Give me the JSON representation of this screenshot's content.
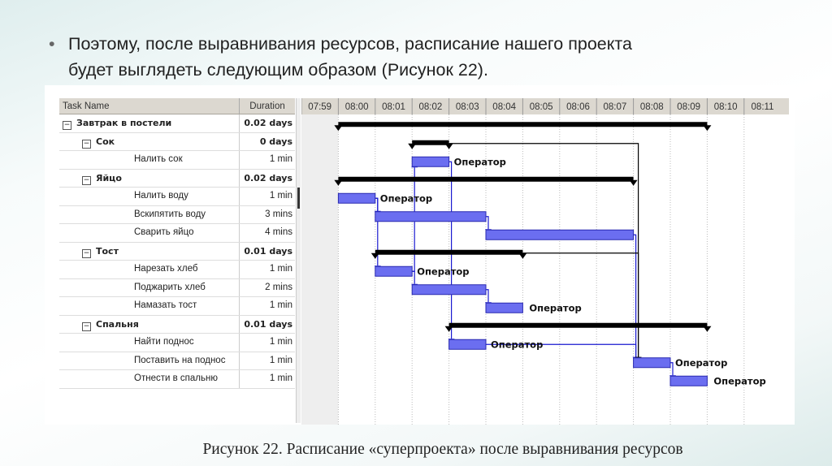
{
  "slide": {
    "bullet_line1": "Поэтому, после выравнивания ресурсов, расписание нашего проекта",
    "bullet_line2": "будет выглядеть следующим образом (Рисунок 22).",
    "caption": "Рисунок 22. Расписание «суперпроекта» после выравнивания ресурсов"
  },
  "table": {
    "col_task": "Task Name",
    "col_duration": "Duration",
    "rows": [
      {
        "name": "Завтрак в постели",
        "duration": "0.02 days",
        "level": 0,
        "summary": true
      },
      {
        "name": "Сок",
        "duration": "0 days",
        "level": 1,
        "summary": true
      },
      {
        "name": "Налить сок",
        "duration": "1 min",
        "level": 2,
        "summary": false
      },
      {
        "name": "Яйцо",
        "duration": "0.02 days",
        "level": 1,
        "summary": true
      },
      {
        "name": "Налить воду",
        "duration": "1 min",
        "level": 2,
        "summary": false
      },
      {
        "name": "Вскипятить воду",
        "duration": "3 mins",
        "level": 2,
        "summary": false
      },
      {
        "name": "Сварить яйцо",
        "duration": "4 mins",
        "level": 2,
        "summary": false
      },
      {
        "name": "Тост",
        "duration": "0.01 days",
        "level": 1,
        "summary": true
      },
      {
        "name": "Нарезать хлеб",
        "duration": "1 min",
        "level": 2,
        "summary": false
      },
      {
        "name": "Поджарить хлеб",
        "duration": "2 mins",
        "level": 2,
        "summary": false
      },
      {
        "name": "Намазать тост",
        "duration": "1 min",
        "level": 2,
        "summary": false
      },
      {
        "name": "Спальня",
        "duration": "0.01 days",
        "level": 1,
        "summary": true
      },
      {
        "name": "Найти поднос",
        "duration": "1 min",
        "level": 2,
        "summary": false
      },
      {
        "name": "Поставить на поднос",
        "duration": "1 min",
        "level": 2,
        "summary": false
      },
      {
        "name": "Отнести в спальню",
        "duration": "1 min",
        "level": 2,
        "summary": false
      }
    ],
    "collapse_symbol": "−"
  },
  "chart_data": {
    "type": "gantt",
    "time_ticks": [
      "07:59",
      "08:00",
      "08:01",
      "08:02",
      "08:03",
      "08:04",
      "08:05",
      "08:06",
      "08:07",
      "08:08",
      "08:09",
      "08:10",
      "08:11"
    ],
    "tasks": [
      {
        "row": 0,
        "start": "08:00",
        "end": "08:10",
        "summary": true
      },
      {
        "row": 1,
        "start": "08:02",
        "end": "08:03",
        "summary": true
      },
      {
        "row": 2,
        "start": "08:02",
        "end": "08:03",
        "summary": false,
        "resource": "Оператор"
      },
      {
        "row": 3,
        "start": "08:00",
        "end": "08:08",
        "summary": true
      },
      {
        "row": 4,
        "start": "08:00",
        "end": "08:01",
        "summary": false,
        "resource": "Оператор"
      },
      {
        "row": 5,
        "start": "08:01",
        "end": "08:04",
        "summary": false,
        "resource": ""
      },
      {
        "row": 6,
        "start": "08:04",
        "end": "08:08",
        "summary": false,
        "resource": ""
      },
      {
        "row": 7,
        "start": "08:01",
        "end": "08:05",
        "summary": true
      },
      {
        "row": 8,
        "start": "08:01",
        "end": "08:02",
        "summary": false,
        "resource": "Оператор"
      },
      {
        "row": 9,
        "start": "08:02",
        "end": "08:04",
        "summary": false,
        "resource": ""
      },
      {
        "row": 10,
        "start": "08:04",
        "end": "08:05",
        "summary": false,
        "resource": "Оператор"
      },
      {
        "row": 11,
        "start": "08:03",
        "end": "08:10",
        "summary": true
      },
      {
        "row": 12,
        "start": "08:03",
        "end": "08:04",
        "summary": false,
        "resource": "Оператор"
      },
      {
        "row": 13,
        "start": "08:08",
        "end": "08:09",
        "summary": false,
        "resource": "Оператор"
      },
      {
        "row": 14,
        "start": "08:09",
        "end": "08:10",
        "summary": false,
        "resource": "Оператор"
      }
    ],
    "links": [
      [
        4,
        5
      ],
      [
        5,
        6
      ],
      [
        4,
        8
      ],
      [
        8,
        2
      ],
      [
        8,
        9
      ],
      [
        9,
        10
      ],
      [
        2,
        12
      ],
      [
        12,
        13
      ],
      [
        6,
        13
      ],
      [
        1,
        13
      ],
      [
        7,
        13
      ],
      [
        13,
        14
      ]
    ],
    "colors": {
      "task": "#6b6ef0",
      "task_border": "#2a2ab0",
      "summary": "#000000",
      "link": "#1a1ad0",
      "summary_link": "#000000",
      "grid": "#bbbbbb"
    }
  }
}
